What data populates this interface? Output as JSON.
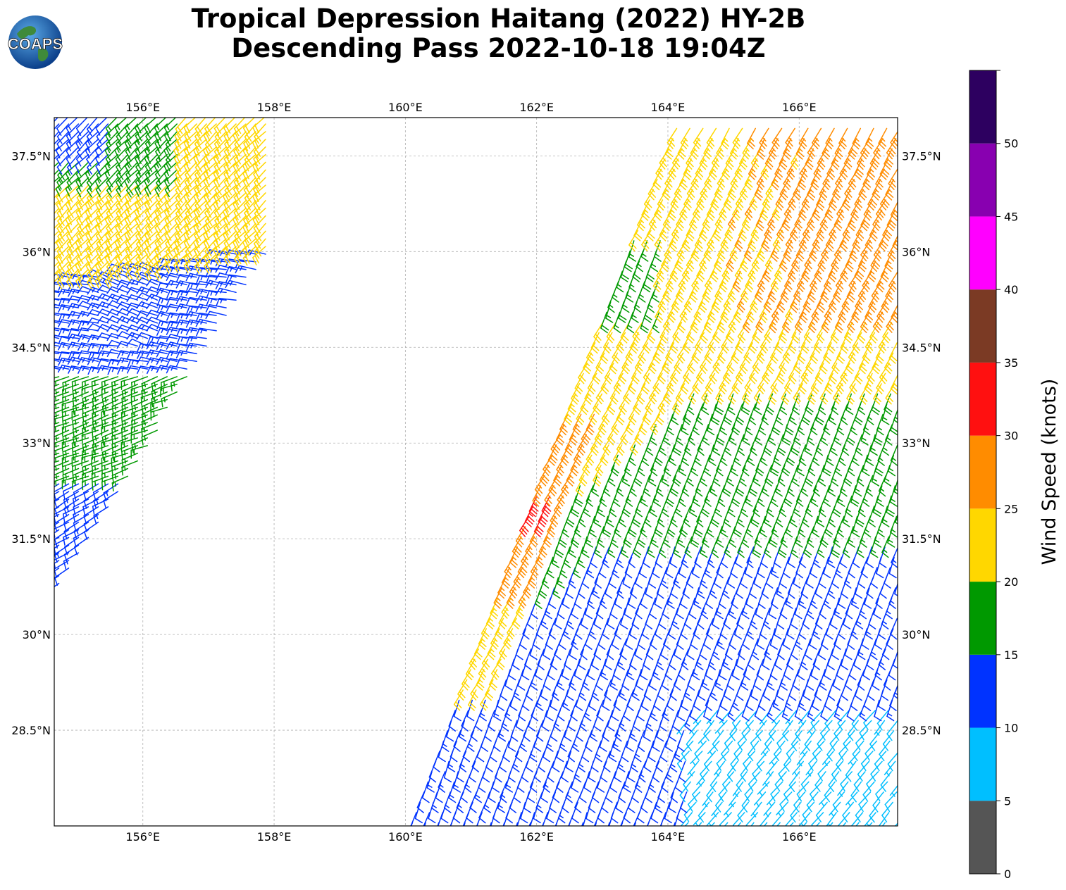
{
  "title": {
    "line1": "Tropical Depression Haitang (2022) HY-2B",
    "line2": "Descending Pass 2022-10-18 19:04Z"
  },
  "logo": {
    "text": "COAPS"
  },
  "map": {
    "lon_range": [
      154.65,
      167.5
    ],
    "lat_range": [
      27.0,
      38.1
    ],
    "lon_ticks": [
      156,
      158,
      160,
      162,
      164,
      166
    ],
    "lon_tick_labels": [
      "156°E",
      "158°E",
      "160°E",
      "162°E",
      "164°E",
      "166°E"
    ],
    "lat_ticks": [
      28.5,
      30,
      31.5,
      33,
      34.5,
      36,
      37.5
    ],
    "lat_tick_labels": [
      "28.5°N",
      "30°N",
      "31.5°N",
      "33°N",
      "34.5°N",
      "36°N",
      "37.5°N"
    ],
    "gridlines": true
  },
  "colorbar": {
    "label": "Wind Speed (knots)",
    "bounds": [
      0,
      5,
      10,
      15,
      20,
      25,
      30,
      35,
      40,
      45,
      50,
      55
    ],
    "tick_labels": [
      "0",
      "5",
      "10",
      "15",
      "20",
      "25",
      "30",
      "35",
      "40",
      "45",
      "50"
    ],
    "colors": [
      "#555555",
      "#00bfff",
      "#0033ff",
      "#009900",
      "#ffd700",
      "#ff8c00",
      "#ff1010",
      "#7b3a24",
      "#ff00ff",
      "#8800b0",
      "#2d0060"
    ]
  },
  "chart_data": {
    "type": "wind-barbs",
    "units": "knots",
    "regions": [
      {
        "name": "west-swath-north",
        "lon": [
          154.8,
          158.0
        ],
        "lat": [
          35.8,
          38.1
        ],
        "speed_knots": 22,
        "direction_from_deg": 225
      },
      {
        "name": "west-swath-center",
        "lon": [
          154.9,
          157.5
        ],
        "lat": [
          34.6,
          36.2
        ],
        "speed_knots": 12,
        "direction_from_deg": 280
      },
      {
        "name": "west-swath-south",
        "lon": [
          154.7,
          155.9
        ],
        "lat": [
          31.0,
          34.6
        ],
        "speed_knots": 15,
        "direction_from_deg": 250
      },
      {
        "name": "east-swath-north",
        "lon": [
          163.0,
          167.5
        ],
        "lat": [
          35.0,
          38.0
        ],
        "speed_knots": 27,
        "direction_from_deg": 210
      },
      {
        "name": "east-swath-middle",
        "lon": [
          162.0,
          167.5
        ],
        "lat": [
          31.0,
          35.0
        ],
        "speed_knots": 23,
        "direction_from_deg": 210
      },
      {
        "name": "east-swath-edge",
        "lon": [
          161.8,
          162.6
        ],
        "lat": [
          30.5,
          33.5
        ],
        "speed_knots": 28,
        "direction_from_deg": 210
      },
      {
        "name": "east-swath-maximum",
        "lon": [
          161.9,
          162.1
        ],
        "lat": [
          31.9,
          32.2
        ],
        "speed_knots": 32,
        "direction_from_deg": 210
      },
      {
        "name": "east-swath-south-green",
        "lon": [
          161.3,
          167.5
        ],
        "lat": [
          28.5,
          33.0
        ],
        "speed_knots": 17,
        "direction_from_deg": 200
      },
      {
        "name": "east-swath-south-blue",
        "lon": [
          161.3,
          167.5
        ],
        "lat": [
          27.0,
          30.5
        ],
        "speed_knots": 12,
        "direction_from_deg": 200
      },
      {
        "name": "east-swath-southeast",
        "lon": [
          164.3,
          167.5
        ],
        "lat": [
          27.0,
          28.8
        ],
        "speed_knots": 8,
        "direction_from_deg": 220
      }
    ]
  }
}
